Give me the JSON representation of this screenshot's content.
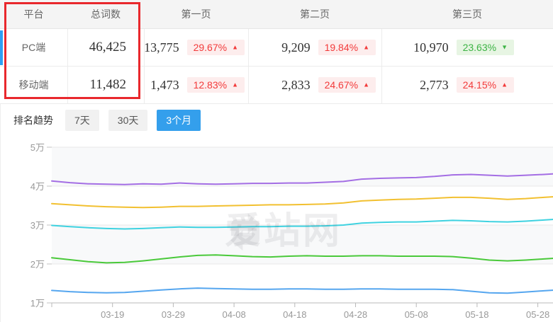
{
  "table": {
    "headers": [
      "平台",
      "总词数",
      "第一页",
      "第二页",
      "第三页"
    ],
    "rows": [
      {
        "platform": "PC端",
        "total": "46,425",
        "pages": [
          {
            "count": "13,775",
            "pct": "29.67%",
            "dir": "up"
          },
          {
            "count": "9,209",
            "pct": "19.84%",
            "dir": "up"
          },
          {
            "count": "10,970",
            "pct": "23.63%",
            "dir": "down"
          }
        ]
      },
      {
        "platform": "移动端",
        "total": "11,482",
        "pages": [
          {
            "count": "1,473",
            "pct": "12.83%",
            "dir": "up"
          },
          {
            "count": "2,833",
            "pct": "24.67%",
            "dir": "up"
          },
          {
            "count": "2,773",
            "pct": "24.15%",
            "dir": "up"
          }
        ]
      }
    ]
  },
  "trend": {
    "label": "排名趋势",
    "tabs": [
      {
        "label": "7天",
        "state": ""
      },
      {
        "label": "30天",
        "state": ""
      },
      {
        "label": "3个月",
        "state": "active"
      }
    ]
  },
  "watermark": {
    "text": "爱站网"
  },
  "icons": {
    "up_arrow": "▲",
    "down_arrow": "▼"
  },
  "colors": {
    "accent_blue": "#349fec",
    "up_red": "#f23a3a",
    "down_green": "#3cb344",
    "highlight_red": "#e9282d"
  },
  "chart_data": {
    "type": "line",
    "title": "",
    "xlabel": "",
    "ylabel": "",
    "legend": "none",
    "grid": true,
    "y_unit": "万",
    "ylim": [
      10000,
      50000
    ],
    "y_tick_labels": [
      "5万",
      "4万",
      "3万",
      "2万",
      "1万"
    ],
    "y_tick_values": [
      50000,
      40000,
      30000,
      20000,
      10000
    ],
    "x_tick_labels": [
      "03-19",
      "03-29",
      "04-08",
      "04-18",
      "04-28",
      "05-08",
      "05-18",
      "05-28"
    ],
    "x_tick_days": [
      10,
      20,
      30,
      40,
      50,
      60,
      70,
      80
    ],
    "days": [
      0,
      3,
      6,
      9,
      12,
      15,
      18,
      21,
      24,
      27,
      30,
      33,
      36,
      39,
      42,
      45,
      48,
      51,
      54,
      57,
      60,
      63,
      66,
      69,
      72,
      75,
      78,
      81,
      83
    ],
    "series": [
      {
        "name": "purple-line",
        "color": "#a46ee4",
        "values": [
          4.13,
          4.09,
          4.06,
          4.05,
          4.04,
          4.06,
          4.05,
          4.08,
          4.06,
          4.05,
          4.06,
          4.07,
          4.07,
          4.08,
          4.08,
          4.1,
          4.12,
          4.18,
          4.2,
          4.21,
          4.22,
          4.25,
          4.29,
          4.3,
          4.28,
          4.26,
          4.28,
          4.3,
          4.32
        ]
      },
      {
        "name": "yellow-line",
        "color": "#f2c030",
        "values": [
          3.55,
          3.52,
          3.49,
          3.47,
          3.46,
          3.45,
          3.46,
          3.48,
          3.48,
          3.49,
          3.5,
          3.51,
          3.52,
          3.52,
          3.53,
          3.54,
          3.57,
          3.62,
          3.64,
          3.66,
          3.67,
          3.69,
          3.71,
          3.71,
          3.69,
          3.66,
          3.68,
          3.71,
          3.73
        ]
      },
      {
        "name": "cyan-line",
        "color": "#3fd2e0",
        "values": [
          2.99,
          2.96,
          2.93,
          2.91,
          2.9,
          2.91,
          2.93,
          2.95,
          2.94,
          2.94,
          2.95,
          2.96,
          2.96,
          2.97,
          2.97,
          2.98,
          3.0,
          3.05,
          3.07,
          3.08,
          3.08,
          3.1,
          3.12,
          3.11,
          3.09,
          3.08,
          3.1,
          3.13,
          3.15
        ]
      },
      {
        "name": "green-line",
        "color": "#4ac93a",
        "values": [
          2.16,
          2.11,
          2.06,
          2.03,
          2.04,
          2.08,
          2.13,
          2.18,
          2.22,
          2.23,
          2.21,
          2.19,
          2.18,
          2.2,
          2.21,
          2.2,
          2.2,
          2.21,
          2.21,
          2.2,
          2.2,
          2.2,
          2.19,
          2.15,
          2.1,
          2.08,
          2.1,
          2.13,
          2.15
        ]
      },
      {
        "name": "blue-line",
        "color": "#55a6ef",
        "values": [
          1.32,
          1.29,
          1.27,
          1.26,
          1.27,
          1.3,
          1.33,
          1.36,
          1.38,
          1.37,
          1.36,
          1.35,
          1.35,
          1.36,
          1.36,
          1.35,
          1.35,
          1.36,
          1.36,
          1.35,
          1.35,
          1.35,
          1.34,
          1.3,
          1.26,
          1.25,
          1.28,
          1.31,
          1.33
        ]
      }
    ]
  }
}
